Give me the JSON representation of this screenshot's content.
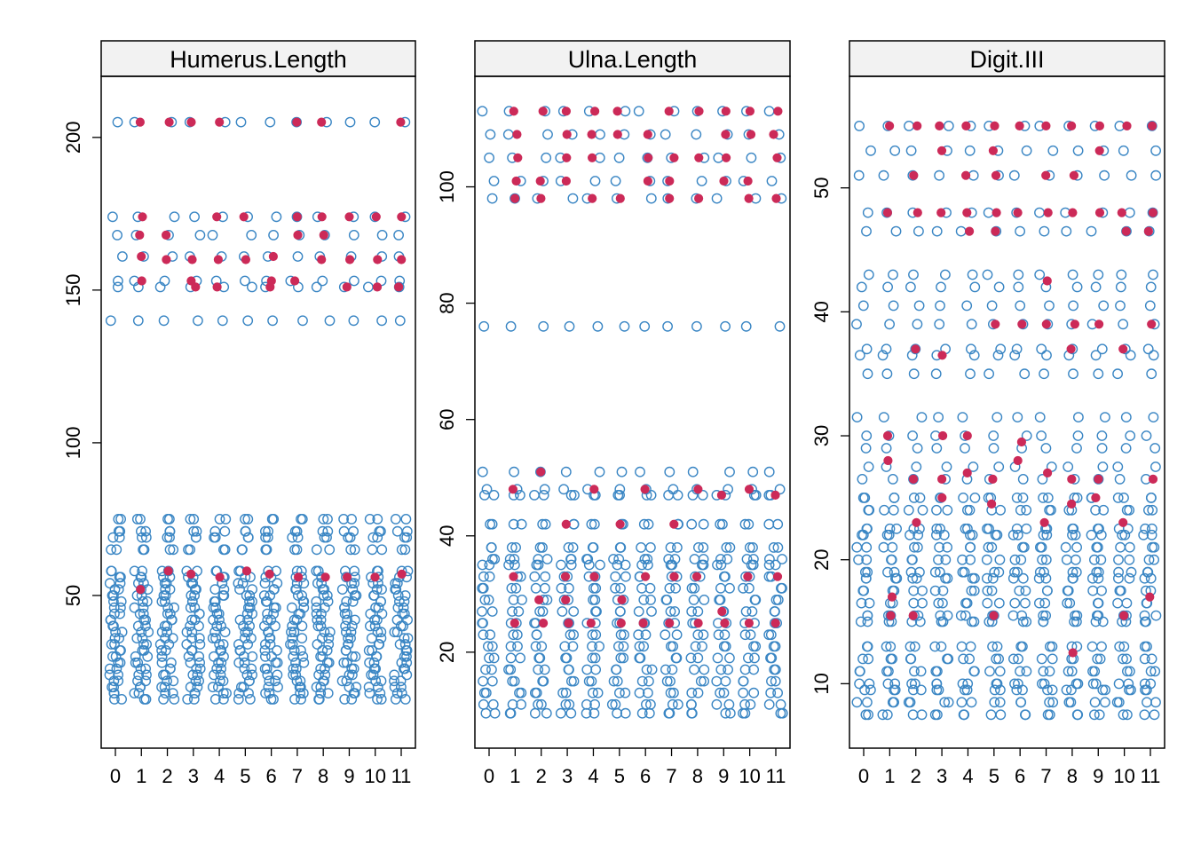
{
  "chart_data": [
    {
      "type": "scatter",
      "title": "Humerus.Length",
      "x_categories": [
        "0",
        "1",
        "2",
        "3",
        "4",
        "5",
        "6",
        "7",
        "8",
        "9",
        "10",
        "11"
      ],
      "ylim": [
        0,
        220
      ],
      "y_ticks": [
        50,
        100,
        150,
        200
      ],
      "grid": false,
      "open_levels": [
        205,
        174,
        168,
        161,
        153,
        151,
        140,
        75,
        71,
        69,
        65,
        58,
        56,
        54,
        52,
        50,
        48,
        46,
        44,
        42,
        40,
        38,
        36,
        34,
        32,
        30,
        28,
        26,
        24,
        22,
        20,
        18,
        16
      ],
      "filled_points": [
        {
          "x": 1,
          "y": 205
        },
        {
          "x": 2,
          "y": 205
        },
        {
          "x": 3,
          "y": 205
        },
        {
          "x": 4,
          "y": 205
        },
        {
          "x": 7,
          "y": 205
        },
        {
          "x": 8,
          "y": 205
        },
        {
          "x": 11,
          "y": 205
        },
        {
          "x": 1,
          "y": 174
        },
        {
          "x": 4,
          "y": 174
        },
        {
          "x": 5,
          "y": 174
        },
        {
          "x": 7,
          "y": 174
        },
        {
          "x": 8,
          "y": 174
        },
        {
          "x": 9,
          "y": 174
        },
        {
          "x": 10,
          "y": 174
        },
        {
          "x": 11,
          "y": 174
        },
        {
          "x": 1,
          "y": 168
        },
        {
          "x": 2,
          "y": 168
        },
        {
          "x": 7,
          "y": 168
        },
        {
          "x": 8,
          "y": 168
        },
        {
          "x": 1,
          "y": 161
        },
        {
          "x": 2,
          "y": 160
        },
        {
          "x": 3,
          "y": 160
        },
        {
          "x": 4,
          "y": 160
        },
        {
          "x": 5,
          "y": 160
        },
        {
          "x": 6,
          "y": 161
        },
        {
          "x": 8,
          "y": 160
        },
        {
          "x": 9,
          "y": 160
        },
        {
          "x": 10,
          "y": 160
        },
        {
          "x": 11,
          "y": 160
        },
        {
          "x": 1,
          "y": 153
        },
        {
          "x": 3,
          "y": 153
        },
        {
          "x": 6,
          "y": 153
        },
        {
          "x": 7,
          "y": 153
        },
        {
          "x": 3,
          "y": 151
        },
        {
          "x": 4,
          "y": 151
        },
        {
          "x": 6,
          "y": 151
        },
        {
          "x": 9,
          "y": 151
        },
        {
          "x": 10,
          "y": 151
        },
        {
          "x": 11,
          "y": 151
        },
        {
          "x": 1,
          "y": 52
        },
        {
          "x": 2,
          "y": 58
        },
        {
          "x": 3,
          "y": 57
        },
        {
          "x": 4,
          "y": 56
        },
        {
          "x": 5,
          "y": 58
        },
        {
          "x": 6,
          "y": 57
        },
        {
          "x": 7,
          "y": 56
        },
        {
          "x": 8,
          "y": 56
        },
        {
          "x": 9,
          "y": 56
        },
        {
          "x": 10,
          "y": 56
        },
        {
          "x": 11,
          "y": 57
        }
      ]
    },
    {
      "type": "scatter",
      "title": "Ulna.Length",
      "x_categories": [
        "0",
        "1",
        "2",
        "3",
        "4",
        "5",
        "6",
        "7",
        "8",
        "9",
        "10",
        "11"
      ],
      "ylim": [
        3.5,
        119
      ],
      "y_ticks": [
        20,
        40,
        60,
        80,
        100
      ],
      "grid": false,
      "open_levels": [
        113,
        109,
        105,
        101,
        98,
        76,
        51,
        48,
        47,
        42,
        38,
        36,
        35,
        33,
        31,
        29,
        27,
        25,
        23,
        21,
        19,
        17,
        15,
        13,
        11,
        9.5
      ],
      "filled_points": [
        {
          "x": 1,
          "y": 113
        },
        {
          "x": 2,
          "y": 113
        },
        {
          "x": 3,
          "y": 113
        },
        {
          "x": 4,
          "y": 113
        },
        {
          "x": 5,
          "y": 113
        },
        {
          "x": 7,
          "y": 113
        },
        {
          "x": 8,
          "y": 113
        },
        {
          "x": 9,
          "y": 113
        },
        {
          "x": 10,
          "y": 113
        },
        {
          "x": 11,
          "y": 113
        },
        {
          "x": 1,
          "y": 109
        },
        {
          "x": 3,
          "y": 109
        },
        {
          "x": 4,
          "y": 109
        },
        {
          "x": 5,
          "y": 109
        },
        {
          "x": 6,
          "y": 109
        },
        {
          "x": 9,
          "y": 109
        },
        {
          "x": 10,
          "y": 109
        },
        {
          "x": 11,
          "y": 109
        },
        {
          "x": 1,
          "y": 105
        },
        {
          "x": 3,
          "y": 105
        },
        {
          "x": 4,
          "y": 105
        },
        {
          "x": 6,
          "y": 105
        },
        {
          "x": 7,
          "y": 105
        },
        {
          "x": 8,
          "y": 105
        },
        {
          "x": 9,
          "y": 105
        },
        {
          "x": 11,
          "y": 105
        },
        {
          "x": 1,
          "y": 101
        },
        {
          "x": 2,
          "y": 101
        },
        {
          "x": 3,
          "y": 101
        },
        {
          "x": 6,
          "y": 101
        },
        {
          "x": 7,
          "y": 101
        },
        {
          "x": 9,
          "y": 101
        },
        {
          "x": 10,
          "y": 101
        },
        {
          "x": 1,
          "y": 98
        },
        {
          "x": 2,
          "y": 98
        },
        {
          "x": 4,
          "y": 98
        },
        {
          "x": 5,
          "y": 98
        },
        {
          "x": 7,
          "y": 98
        },
        {
          "x": 8,
          "y": 98
        },
        {
          "x": 10,
          "y": 98
        },
        {
          "x": 11,
          "y": 98
        },
        {
          "x": 2,
          "y": 51
        },
        {
          "x": 1,
          "y": 48
        },
        {
          "x": 4,
          "y": 48
        },
        {
          "x": 6,
          "y": 48
        },
        {
          "x": 8,
          "y": 48
        },
        {
          "x": 10,
          "y": 48
        },
        {
          "x": 9,
          "y": 47
        },
        {
          "x": 11,
          "y": 47
        },
        {
          "x": 3,
          "y": 42
        },
        {
          "x": 5,
          "y": 42
        },
        {
          "x": 7,
          "y": 42
        },
        {
          "x": 1,
          "y": 33
        },
        {
          "x": 3,
          "y": 33
        },
        {
          "x": 4,
          "y": 33
        },
        {
          "x": 6,
          "y": 33
        },
        {
          "x": 7,
          "y": 33
        },
        {
          "x": 8,
          "y": 33
        },
        {
          "x": 10,
          "y": 33
        },
        {
          "x": 11,
          "y": 33
        },
        {
          "x": 2,
          "y": 29
        },
        {
          "x": 3,
          "y": 29
        },
        {
          "x": 5,
          "y": 29
        },
        {
          "x": 9,
          "y": 27
        },
        {
          "x": 1,
          "y": 25
        },
        {
          "x": 2,
          "y": 25
        },
        {
          "x": 3,
          "y": 25
        },
        {
          "x": 4,
          "y": 25
        },
        {
          "x": 5,
          "y": 25
        },
        {
          "x": 6,
          "y": 25
        },
        {
          "x": 7,
          "y": 25
        },
        {
          "x": 8,
          "y": 25
        },
        {
          "x": 9,
          "y": 25
        },
        {
          "x": 10,
          "y": 25
        },
        {
          "x": 11,
          "y": 25
        }
      ]
    },
    {
      "type": "scatter",
      "title": "Digit.III",
      "x_categories": [
        "0",
        "1",
        "2",
        "3",
        "4",
        "5",
        "6",
        "7",
        "8",
        "9",
        "10",
        "11"
      ],
      "ylim": [
        4.8,
        59
      ],
      "y_ticks": [
        10,
        20,
        30,
        40,
        50
      ],
      "grid": false,
      "open_levels": [
        55,
        53,
        51,
        48,
        46.5,
        43,
        42,
        40.5,
        39,
        37,
        36.5,
        35,
        31.5,
        30,
        29,
        27.5,
        26.5,
        25,
        24,
        22.5,
        22,
        21,
        20,
        19,
        18.5,
        17.5,
        16.5,
        15.5,
        15,
        13,
        12,
        11,
        10,
        9.5,
        8.5,
        7.5
      ],
      "filled_points": [
        {
          "x": 1,
          "y": 55
        },
        {
          "x": 2,
          "y": 55
        },
        {
          "x": 3,
          "y": 55
        },
        {
          "x": 4,
          "y": 55
        },
        {
          "x": 5,
          "y": 55
        },
        {
          "x": 6,
          "y": 55
        },
        {
          "x": 7,
          "y": 55
        },
        {
          "x": 8,
          "y": 55
        },
        {
          "x": 9,
          "y": 55
        },
        {
          "x": 10,
          "y": 55
        },
        {
          "x": 11,
          "y": 55
        },
        {
          "x": 3,
          "y": 53
        },
        {
          "x": 5,
          "y": 53
        },
        {
          "x": 9,
          "y": 53
        },
        {
          "x": 2,
          "y": 51
        },
        {
          "x": 4,
          "y": 51
        },
        {
          "x": 5,
          "y": 51
        },
        {
          "x": 7,
          "y": 51
        },
        {
          "x": 8,
          "y": 51
        },
        {
          "x": 1,
          "y": 48
        },
        {
          "x": 2,
          "y": 48
        },
        {
          "x": 3,
          "y": 48
        },
        {
          "x": 4,
          "y": 48
        },
        {
          "x": 5,
          "y": 48
        },
        {
          "x": 6,
          "y": 48
        },
        {
          "x": 7,
          "y": 48
        },
        {
          "x": 8,
          "y": 48
        },
        {
          "x": 9,
          "y": 48
        },
        {
          "x": 10,
          "y": 48
        },
        {
          "x": 11,
          "y": 48
        },
        {
          "x": 4,
          "y": 46.5
        },
        {
          "x": 5,
          "y": 46.5
        },
        {
          "x": 10,
          "y": 46.5
        },
        {
          "x": 11,
          "y": 46.5
        },
        {
          "x": 7,
          "y": 42.5
        },
        {
          "x": 5,
          "y": 39
        },
        {
          "x": 6,
          "y": 39
        },
        {
          "x": 7,
          "y": 39
        },
        {
          "x": 8,
          "y": 39
        },
        {
          "x": 9,
          "y": 39
        },
        {
          "x": 11,
          "y": 39
        },
        {
          "x": 2,
          "y": 37
        },
        {
          "x": 3,
          "y": 36.5
        },
        {
          "x": 8,
          "y": 37
        },
        {
          "x": 10,
          "y": 37
        },
        {
          "x": 1,
          "y": 30
        },
        {
          "x": 3,
          "y": 30
        },
        {
          "x": 4,
          "y": 30
        },
        {
          "x": 6,
          "y": 29.5
        },
        {
          "x": 1,
          "y": 28
        },
        {
          "x": 6,
          "y": 28
        },
        {
          "x": 4,
          "y": 27
        },
        {
          "x": 7,
          "y": 27
        },
        {
          "x": 2,
          "y": 26.5
        },
        {
          "x": 3,
          "y": 26.5
        },
        {
          "x": 5,
          "y": 26.5
        },
        {
          "x": 8,
          "y": 26.5
        },
        {
          "x": 9,
          "y": 26.5
        },
        {
          "x": 11,
          "y": 26.5
        },
        {
          "x": 3,
          "y": 25
        },
        {
          "x": 9,
          "y": 25
        },
        {
          "x": 5,
          "y": 24.5
        },
        {
          "x": 8,
          "y": 24.5
        },
        {
          "x": 2,
          "y": 23
        },
        {
          "x": 7,
          "y": 23
        },
        {
          "x": 10,
          "y": 23
        },
        {
          "x": 1,
          "y": 17
        },
        {
          "x": 11,
          "y": 17
        },
        {
          "x": 1,
          "y": 15.5
        },
        {
          "x": 2,
          "y": 15.5
        },
        {
          "x": 5,
          "y": 15.5
        },
        {
          "x": 10,
          "y": 15.5
        },
        {
          "x": 8,
          "y": 12.5
        }
      ]
    }
  ],
  "colors": {
    "open_marker": "#3a86c4",
    "filled_marker": "#cc2a58",
    "strip_background": "#f2f2f2",
    "frame": "#000000"
  }
}
